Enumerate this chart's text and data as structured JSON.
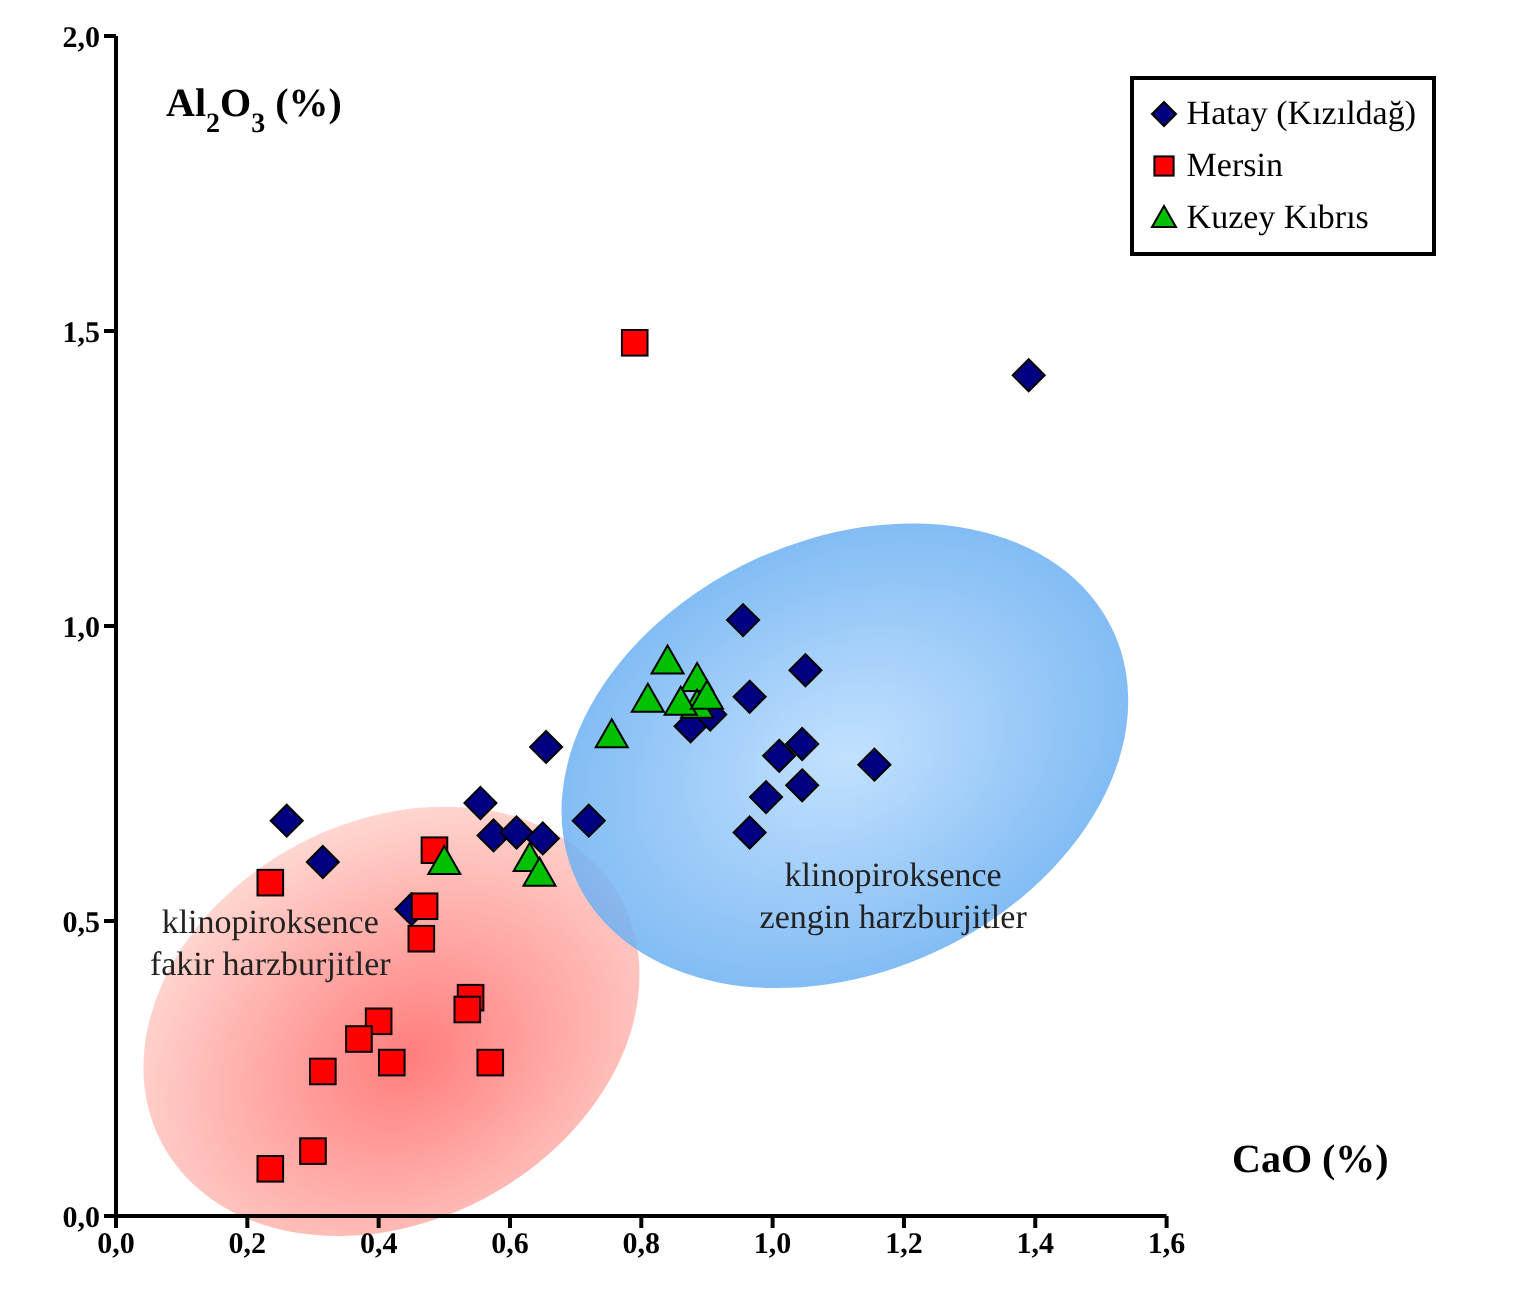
{
  "chart_data": {
    "type": "scatter",
    "xlabel": "CaO (%)",
    "ylabel": "Al$_{2}$O$_{3}$ (%)",
    "xlim": [
      0,
      1.6
    ],
    "ylim": [
      0,
      2
    ],
    "xticks": [
      {
        "value": 0,
        "label": "0,0"
      },
      {
        "value": 0.2,
        "label": "0,2"
      },
      {
        "value": 0.4,
        "label": "0,4"
      },
      {
        "value": 0.6,
        "label": "0,6"
      },
      {
        "value": 0.8,
        "label": "0,8"
      },
      {
        "value": 1,
        "label": "1,0"
      },
      {
        "value": 1.2,
        "label": "1,2"
      },
      {
        "value": 1.4,
        "label": "1,4"
      },
      {
        "value": 1.6,
        "label": "1,6"
      }
    ],
    "yticks": [
      {
        "value": 0,
        "label": "0,0"
      },
      {
        "value": 0.5,
        "label": "0,5"
      },
      {
        "value": 1,
        "label": "1,0"
      },
      {
        "value": 1.5,
        "label": "1,5"
      },
      {
        "value": 2,
        "label": "2,0"
      }
    ],
    "grid": false,
    "legend": "top right",
    "annotations": [
      "klinopiroksence\nfakir harzburjitler",
      "klinopiroksence\nzengin harzburjitler"
    ],
    "series": [
      {
        "name": "Hatay (Kızıldağ)",
        "color": "#000080",
        "marker": "diamond",
        "x": [
          0.26,
          0.315,
          0.45,
          0.555,
          0.575,
          0.61,
          0.655,
          0.65,
          0.72,
          0.875,
          0.905,
          0.955,
          0.965,
          1.05,
          1.01,
          0.99,
          1.045,
          1.045,
          0.965,
          1.155,
          1.39
        ],
        "values": [
          0.67,
          0.6,
          0.52,
          0.7,
          0.645,
          0.65,
          0.795,
          0.64,
          0.67,
          0.83,
          0.85,
          1.01,
          0.88,
          0.925,
          0.78,
          0.71,
          0.8,
          0.73,
          0.65,
          0.765,
          1.425
        ]
      },
      {
        "name": "Mersin",
        "color": "#ff0000",
        "marker": "square",
        "x": [
          0.235,
          0.485,
          0.47,
          0.465,
          0.54,
          0.535,
          0.4,
          0.37,
          0.42,
          0.315,
          0.57,
          0.235,
          0.3,
          0.79
        ],
        "values": [
          0.565,
          0.62,
          0.525,
          0.47,
          0.37,
          0.35,
          0.33,
          0.3,
          0.26,
          0.245,
          0.26,
          0.08,
          0.11,
          1.48
        ]
      },
      {
        "name": "Kuzey Kıbrıs",
        "color": "#00c000",
        "marker": "triangle",
        "x": [
          0.5,
          0.63,
          0.645,
          0.755,
          0.81,
          0.84,
          0.885,
          0.885,
          0.86,
          0.9
        ],
        "values": [
          0.6,
          0.605,
          0.58,
          0.815,
          0.875,
          0.94,
          0.91,
          0.865,
          0.87,
          0.88
        ]
      }
    ]
  }
}
